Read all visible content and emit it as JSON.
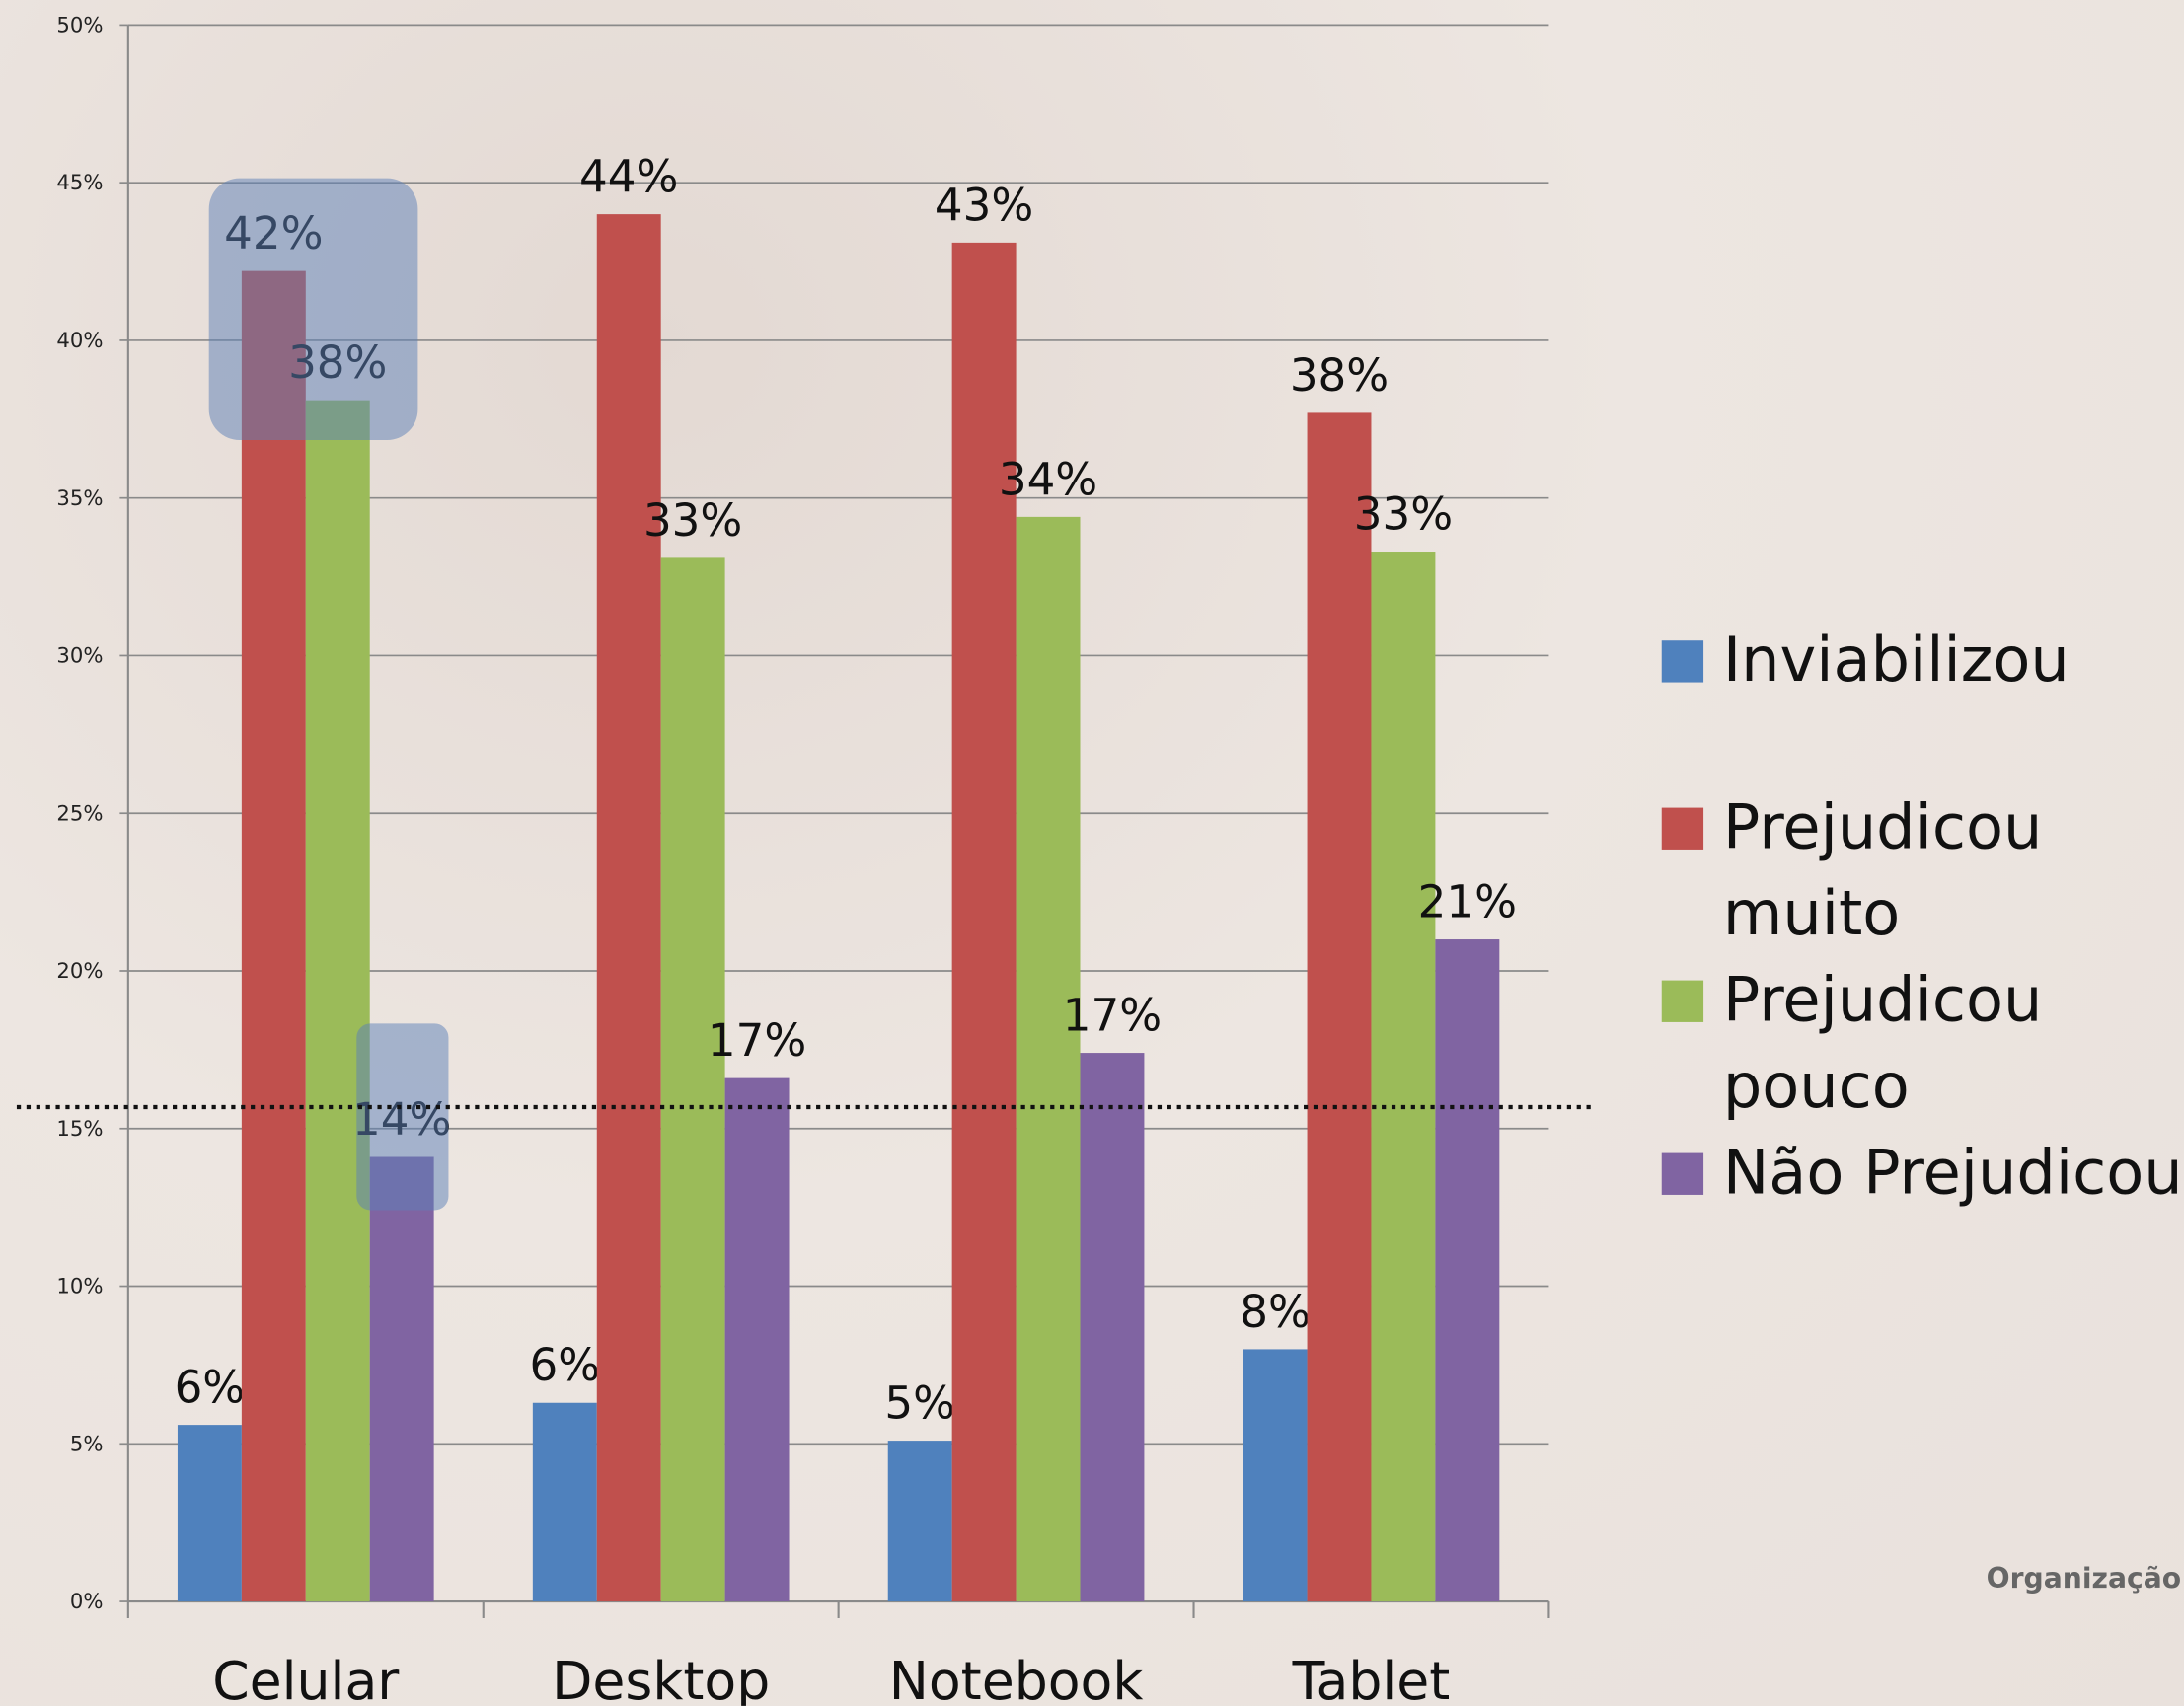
{
  "chart_data": {
    "type": "bar",
    "categories": [
      "Celular",
      "Desktop",
      "Notebook",
      "Tablet"
    ],
    "series": [
      {
        "name": "Inviabilizou",
        "color": "#4f81bd",
        "values": [
          5.6,
          6.3,
          5.1,
          8.0
        ],
        "value_labels": [
          "6%",
          "6%",
          "5%",
          "8%"
        ]
      },
      {
        "name": "Prejudicou muito",
        "color": "#c0504d",
        "values": [
          42.2,
          44.0,
          43.1,
          37.7
        ],
        "value_labels": [
          "42%",
          "44%",
          "43%",
          "38%"
        ]
      },
      {
        "name": "Prejudicou pouco",
        "color": "#9bbb59",
        "values": [
          38.1,
          33.1,
          34.4,
          33.3
        ],
        "value_labels": [
          "38%",
          "33%",
          "34%",
          "33%"
        ]
      },
      {
        "name": "Não Prejudicou",
        "color": "#8064a2",
        "values": [
          14.1,
          16.6,
          17.4,
          21.0
        ],
        "value_labels": [
          "14%",
          "17%",
          "17%",
          "21%"
        ]
      }
    ],
    "ylim": [
      0,
      50
    ],
    "yticks": [
      {
        "value": 0,
        "label": "0%"
      },
      {
        "value": 5,
        "label": "5%"
      },
      {
        "value": 10,
        "label": "10%"
      },
      {
        "value": 15,
        "label": "15%"
      },
      {
        "value": 20,
        "label": "20%"
      },
      {
        "value": 25,
        "label": "25%"
      },
      {
        "value": 30,
        "label": "30%"
      },
      {
        "value": 35,
        "label": "35%"
      },
      {
        "value": 40,
        "label": "40%"
      },
      {
        "value": 45,
        "label": "45%"
      },
      {
        "value": 50,
        "label": "50%"
      }
    ],
    "grid": true,
    "legend": "right"
  },
  "footer": {
    "text": "Organização"
  }
}
